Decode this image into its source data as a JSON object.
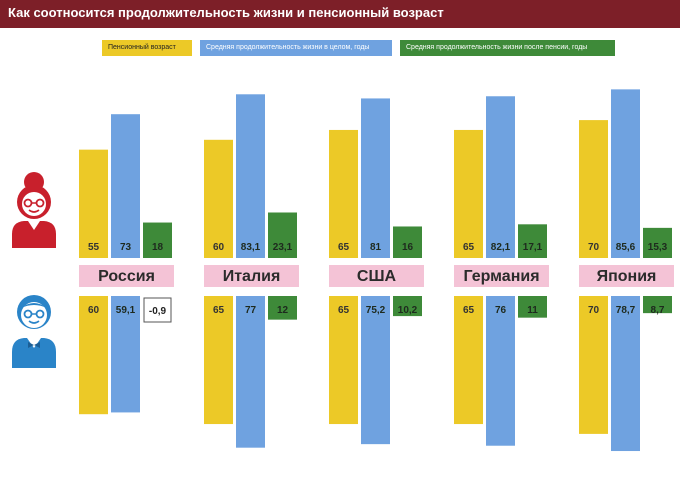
{
  "header": {
    "title": "Как соотносится продолжительность жизни и пенсионный возраст"
  },
  "legend": {
    "retirement": "Пенсионный возраст",
    "life_total": "Средняя продолжительность жизни в целом, годы",
    "life_after": "Средняя продолжительность жизни после пенсии, годы"
  },
  "colors": {
    "retirement": "#ecc927",
    "life_total": "#6fa2e0",
    "life_after": "#3e8a39",
    "header": "#7d1f28",
    "label_bg": "#f4c3d6",
    "avatar_woman": "#c8202c",
    "avatar_man": "#2a84c8"
  },
  "icons": {
    "women": "woman-avatar-icon",
    "men": "man-avatar-icon"
  },
  "chart_data": {
    "type": "bar",
    "categories": [
      "Россия",
      "Италия",
      "США",
      "Германия",
      "Япония"
    ],
    "groups": [
      {
        "name": "women",
        "series": [
          {
            "values": [
              55,
              60,
              65,
              65,
              70
            ],
            "labels": [
              "55",
              "60",
              "65",
              "65",
              "70"
            ]
          },
          {
            "values": [
              73,
              83.1,
              81,
              82.1,
              85.6
            ],
            "labels": [
              "73",
              "83,1",
              "81",
              "82,1",
              "85,6"
            ]
          },
          {
            "values": [
              18,
              23.1,
              16,
              17.1,
              15.3
            ],
            "labels": [
              "18",
              "23,1",
              "16",
              "17,1",
              "15,3"
            ]
          }
        ]
      },
      {
        "name": "men",
        "series": [
          {
            "values": [
              60,
              65,
              65,
              65,
              70
            ],
            "labels": [
              "60",
              "65",
              "65",
              "65",
              "70"
            ]
          },
          {
            "values": [
              59.1,
              77,
              75.2,
              76,
              78.7
            ],
            "labels": [
              "59,1",
              "77",
              "75,2",
              "76",
              "78,7"
            ]
          },
          {
            "values": [
              -0.9,
              12,
              10.2,
              11,
              8.7
            ],
            "labels": [
              "-0,9",
              "12",
              "10,2",
              "11",
              "8,7"
            ]
          }
        ]
      }
    ]
  }
}
